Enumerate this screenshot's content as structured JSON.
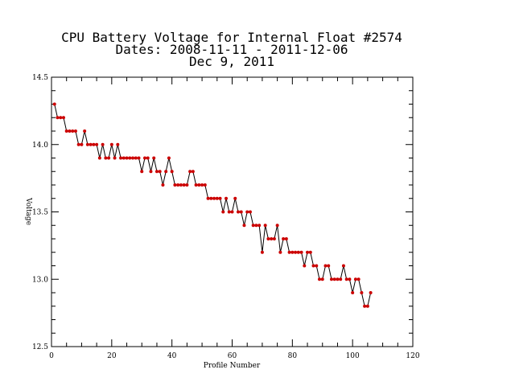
{
  "chart_data": {
    "type": "line",
    "title_lines": [
      "CPU Battery Voltage for Internal Float #2574",
      "Dates:  2008-11-11 -  2011-12-06",
      "Dec  9, 2011"
    ],
    "xlabel": "Profile Number",
    "ylabel": "Voltage",
    "xlim": [
      0,
      120
    ],
    "ylim": [
      12.5,
      14.5
    ],
    "x_ticks": [
      "0",
      "20",
      "40",
      "60",
      "80",
      "100",
      "120"
    ],
    "y_ticks": [
      "12.5",
      "13.0",
      "13.5",
      "14.0",
      "14.5"
    ],
    "line_color": "#000000",
    "marker_color": "#cc0000",
    "series": [
      {
        "x": [
          1,
          2,
          3,
          4,
          5,
          6,
          7,
          8,
          9,
          10,
          11,
          12,
          13,
          14,
          15,
          16,
          17,
          18,
          19,
          20,
          21,
          22,
          23,
          24,
          25,
          26,
          27,
          28,
          29,
          30,
          31,
          32,
          33,
          34,
          35,
          36,
          37,
          38,
          39,
          40,
          41,
          42,
          43,
          44,
          45,
          46,
          47,
          48,
          49,
          50,
          51,
          52,
          53,
          54,
          55,
          56,
          57,
          58,
          59,
          60,
          61,
          62,
          63,
          64,
          65,
          66,
          67,
          68,
          69,
          70,
          71,
          72,
          73,
          74,
          75,
          76,
          77,
          78,
          79,
          80,
          81,
          82,
          83,
          84,
          85,
          86,
          87,
          88,
          89,
          90,
          91,
          92,
          93,
          94,
          95,
          96,
          97,
          98,
          99,
          100,
          101,
          102,
          103,
          104,
          105,
          106
        ],
        "y": [
          14.3,
          14.2,
          14.2,
          14.2,
          14.1,
          14.1,
          14.1,
          14.1,
          14.0,
          14.0,
          14.1,
          14.0,
          14.0,
          14.0,
          14.0,
          13.9,
          14.0,
          13.9,
          13.9,
          14.0,
          13.9,
          14.0,
          13.9,
          13.9,
          13.9,
          13.9,
          13.9,
          13.9,
          13.9,
          13.8,
          13.9,
          13.9,
          13.8,
          13.9,
          13.8,
          13.8,
          13.7,
          13.8,
          13.9,
          13.8,
          13.7,
          13.7,
          13.7,
          13.7,
          13.7,
          13.8,
          13.8,
          13.7,
          13.7,
          13.7,
          13.7,
          13.6,
          13.6,
          13.6,
          13.6,
          13.6,
          13.5,
          13.6,
          13.5,
          13.5,
          13.6,
          13.5,
          13.5,
          13.4,
          13.5,
          13.5,
          13.4,
          13.4,
          13.4,
          13.2,
          13.4,
          13.3,
          13.3,
          13.3,
          13.4,
          13.2,
          13.3,
          13.3,
          13.2,
          13.2,
          13.2,
          13.2,
          13.2,
          13.1,
          13.2,
          13.2,
          13.1,
          13.1,
          13.0,
          13.0,
          13.1,
          13.1,
          13.0,
          13.0,
          13.0,
          13.0,
          13.1,
          13.0,
          13.0,
          12.9,
          13.0,
          13.0,
          12.9,
          12.8,
          12.8,
          12.9
        ]
      }
    ]
  }
}
